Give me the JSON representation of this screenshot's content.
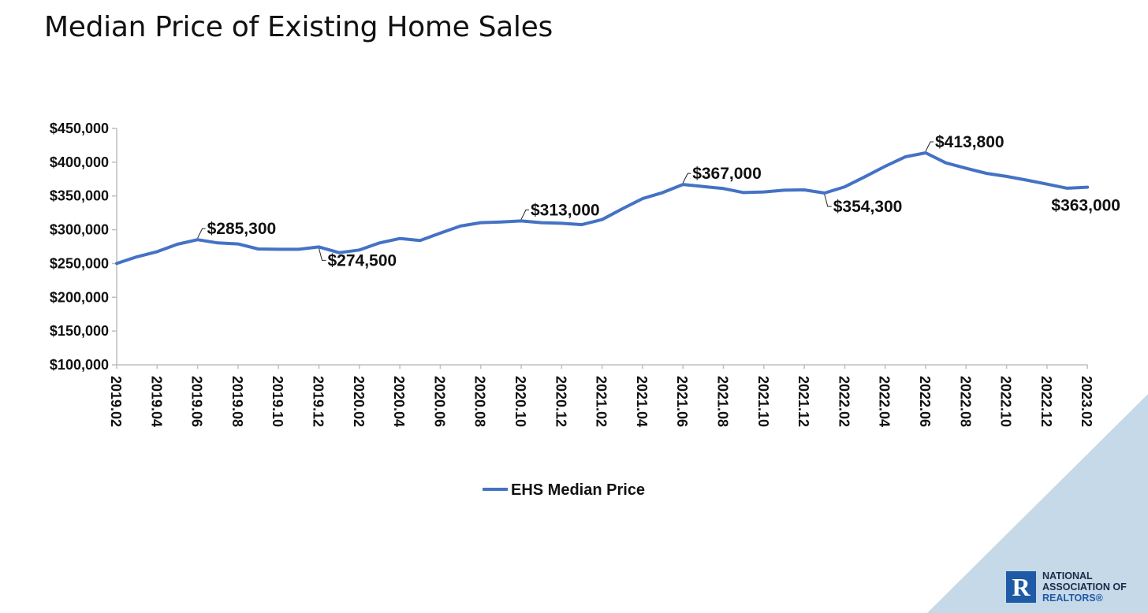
{
  "title": "Median Price of Existing Home Sales",
  "logo": {
    "line1": "NATIONAL",
    "line2": "ASSOCIATION OF",
    "line3": "REALTORS®",
    "mark": "R"
  },
  "colors": {
    "line": "#4472c4",
    "corner": "#c5d9e8",
    "logo": "#1f5aa6"
  },
  "chart_data": {
    "type": "line",
    "title": "Median Price of Existing Home Sales",
    "xlabel": "",
    "ylabel": "",
    "ylim": [
      100000,
      450000
    ],
    "yticks": [
      "$100,000",
      "$150,000",
      "$200,000",
      "$250,000",
      "$300,000",
      "$350,000",
      "$400,000",
      "$450,000"
    ],
    "ytick_values": [
      100000,
      150000,
      200000,
      250000,
      300000,
      350000,
      400000,
      450000
    ],
    "x": [
      "2019.02",
      "2019.03",
      "2019.04",
      "2019.05",
      "2019.06",
      "2019.07",
      "2019.08",
      "2019.09",
      "2019.10",
      "2019.11",
      "2019.12",
      "2020.01",
      "2020.02",
      "2020.03",
      "2020.04",
      "2020.05",
      "2020.06",
      "2020.07",
      "2020.08",
      "2020.09",
      "2020.10",
      "2020.11",
      "2020.12",
      "2021.01",
      "2021.02",
      "2021.03",
      "2021.04",
      "2021.05",
      "2021.06",
      "2021.07",
      "2021.08",
      "2021.09",
      "2021.10",
      "2021.11",
      "2021.12",
      "2022.01",
      "2022.02",
      "2022.03",
      "2022.04",
      "2022.05",
      "2022.06",
      "2022.07",
      "2022.08",
      "2022.09",
      "2022.10",
      "2022.11",
      "2022.12",
      "2023.01",
      "2023.02"
    ],
    "xticks": [
      "2019.02",
      "2019.04",
      "2019.06",
      "2019.08",
      "2019.10",
      "2019.12",
      "2020.02",
      "2020.04",
      "2020.06",
      "2020.08",
      "2020.10",
      "2020.12",
      "2021.02",
      "2021.04",
      "2021.06",
      "2021.08",
      "2021.10",
      "2021.12",
      "2022.02",
      "2022.04",
      "2022.06",
      "2022.08",
      "2022.10",
      "2022.12",
      "2023.02"
    ],
    "series": [
      {
        "name": "EHS Median Price",
        "values": [
          250000,
          260000,
          267500,
          278500,
          285300,
          280500,
          279000,
          271500,
          271000,
          271000,
          274500,
          266000,
          270000,
          280500,
          287000,
          284000,
          295000,
          305500,
          310500,
          311500,
          313000,
          310500,
          309500,
          307500,
          315000,
          331000,
          346000,
          355000,
          367000,
          364000,
          361000,
          355000,
          356000,
          358500,
          359000,
          354300,
          363500,
          378500,
          394000,
          408000,
          413800,
          399000,
          391000,
          383500,
          379000,
          373500,
          367500,
          361500,
          363000
        ]
      }
    ],
    "annotations": [
      {
        "index": 4,
        "text": "$285,300",
        "position": "above-right"
      },
      {
        "index": 10,
        "text": "$274,500",
        "position": "below-right"
      },
      {
        "index": 20,
        "text": "$313,000",
        "position": "above-right"
      },
      {
        "index": 28,
        "text": "$367,000",
        "position": "above-right"
      },
      {
        "index": 35,
        "text": "$354,300",
        "position": "below-right"
      },
      {
        "index": 40,
        "text": "$413,800",
        "position": "above-right"
      },
      {
        "index": 48,
        "text": "$363,000",
        "position": "below"
      }
    ],
    "grid": false,
    "legend_position": "bottom-center"
  }
}
